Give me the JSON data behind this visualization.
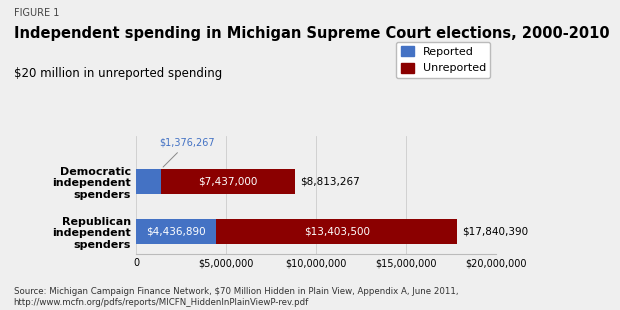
{
  "figure_label": "FIGURE 1",
  "title": "Independent spending in Michigan Supreme Court elections, 2000-2010",
  "subtitle": "$20 million in unreported spending",
  "categories": [
    "Democratic\nindependent\nspenders",
    "Republican\nindependent\nspenders"
  ],
  "reported": [
    1376267,
    4436890
  ],
  "unreported": [
    7437000,
    13403500
  ],
  "totals": [
    "$8,813,267",
    "$17,840,390"
  ],
  "reported_labels": [
    "$1,376,267",
    "$4,436,890"
  ],
  "unreported_labels": [
    "$7,437,000",
    "$13,403,500"
  ],
  "reported_color": "#4472C4",
  "unreported_color": "#8B0000",
  "bg_color": "#EFEFEF",
  "xlim": [
    0,
    20000000
  ],
  "source_text": "Source: Michigan Campaign Finance Network, $70 Million Hidden in Plain View, Appendix A, June 2011,\nhttp://www.mcfn.org/pdfs/reports/MICFN_HiddenInPlainViewP-rev.pdf"
}
